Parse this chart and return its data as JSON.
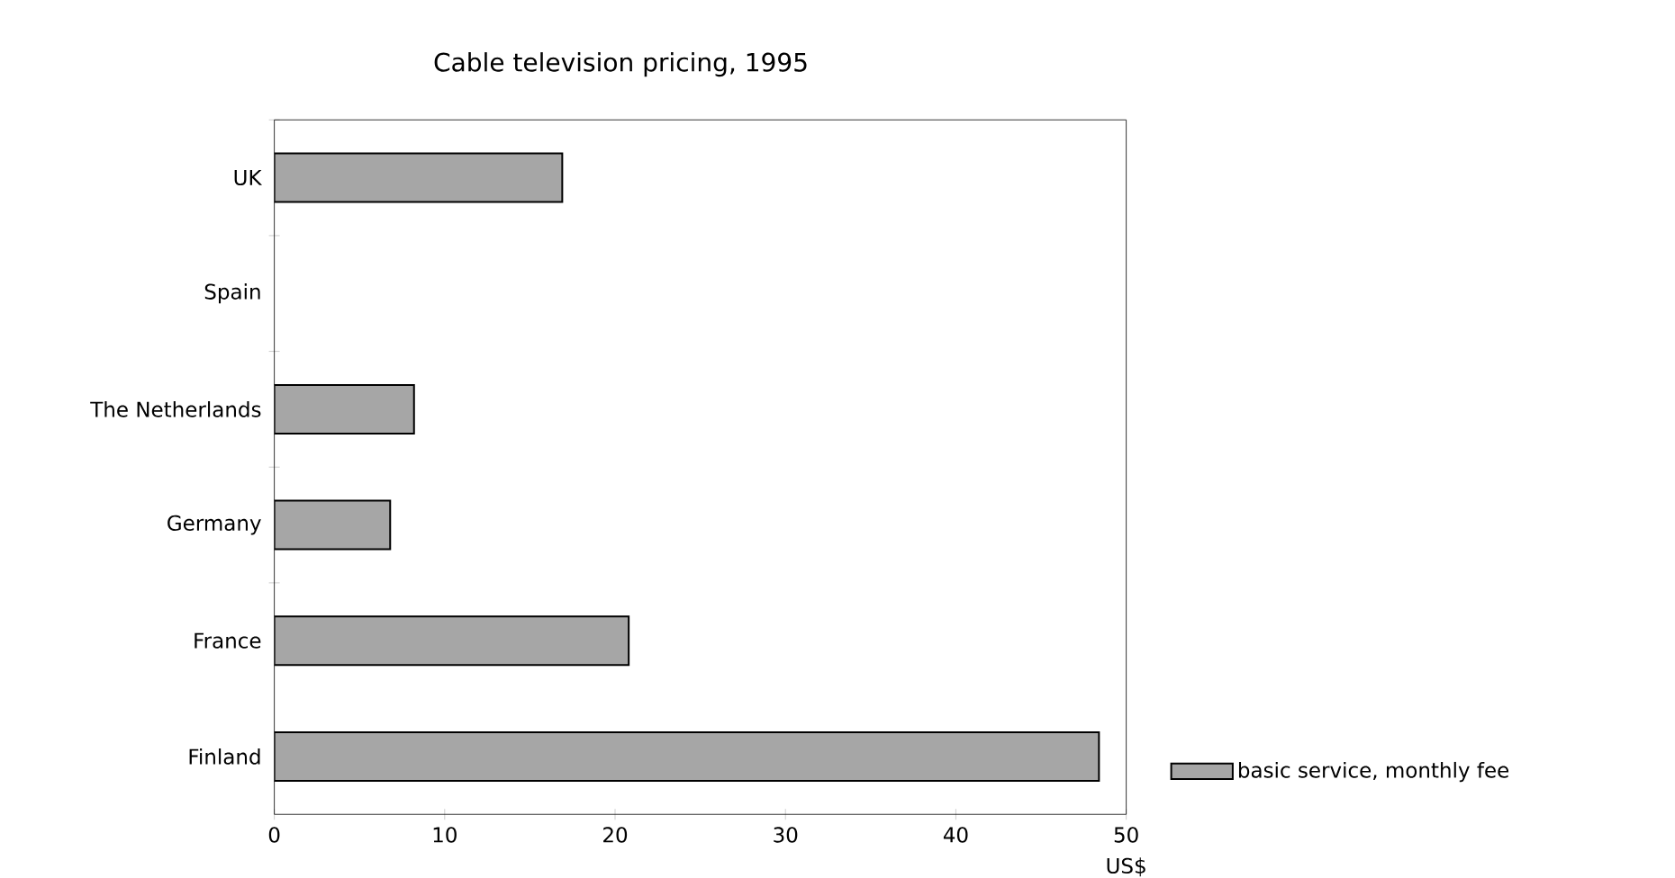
{
  "chart_data": {
    "type": "bar",
    "orientation": "horizontal",
    "title": "Cable television pricing, 1995",
    "xlabel": "US$",
    "categories": [
      "UK",
      "Spain",
      "The Netherlands",
      "Germany",
      "France",
      "Finland"
    ],
    "series": [
      {
        "name": "basic service, monthly fee",
        "color": "#a6a6a6",
        "values": [
          16.9,
          null,
          8.2,
          6.8,
          20.8,
          48.4
        ]
      }
    ],
    "xlim": [
      0,
      50
    ],
    "xticks": [
      0,
      10,
      20,
      30,
      40,
      50
    ],
    "grid": false,
    "legend": "bottom right"
  }
}
